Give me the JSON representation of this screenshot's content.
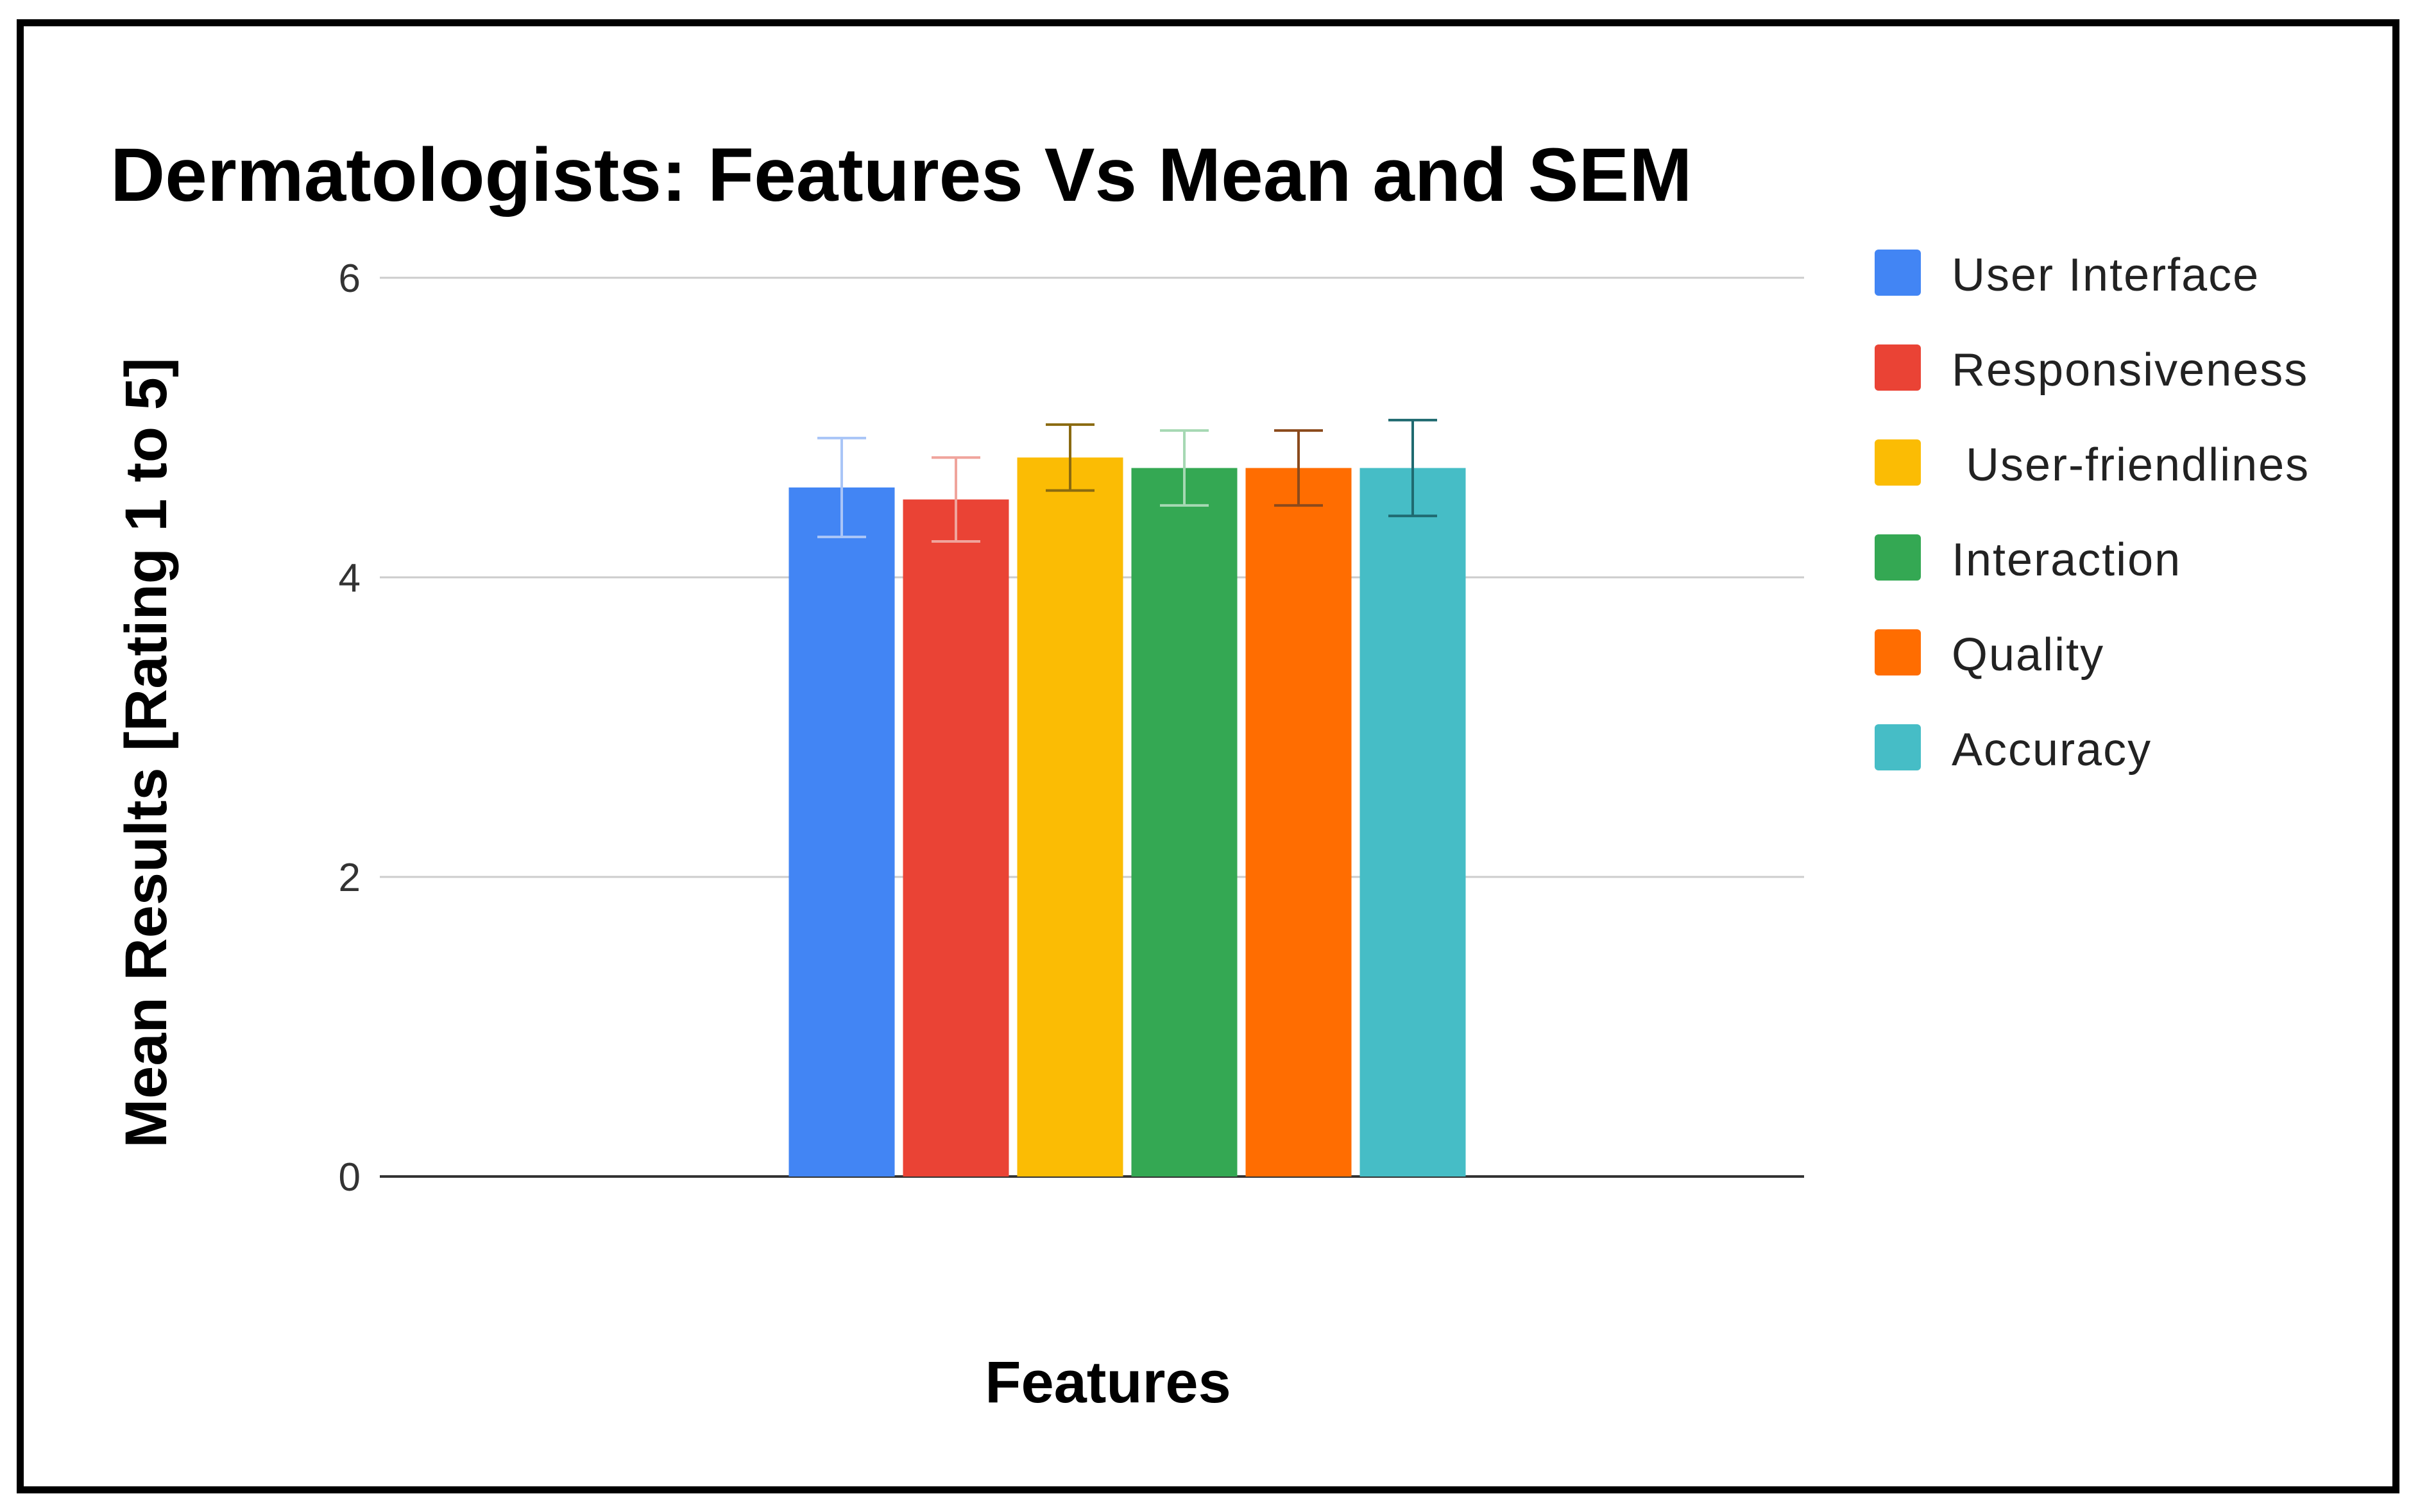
{
  "chart_data": {
    "type": "bar",
    "title": "Dermatologists: Features Vs Mean and SEM",
    "xlabel": "Features",
    "ylabel": "Mean Results [Rating 1 to 5]",
    "ylim": [
      0,
      6
    ],
    "yticks": [
      "0",
      "2",
      "4",
      "6"
    ],
    "grid": true,
    "legend_position": "right",
    "series": [
      {
        "name": "User Interface",
        "value": 4.6,
        "sem": 0.33,
        "color": "#4285F4",
        "error_color": "#A9C5F7"
      },
      {
        "name": "Responsiveness",
        "value": 4.52,
        "sem": 0.28,
        "color": "#EA4335",
        "error_color": "#F0A49C"
      },
      {
        "name": " User-friendlines",
        "value": 4.8,
        "sem": 0.22,
        "color": "#FBBC04",
        "error_color": "#8A6A10"
      },
      {
        "name": "Interaction",
        "value": 4.73,
        "sem": 0.25,
        "color": "#34A853",
        "error_color": "#A6D8B3"
      },
      {
        "name": "Quality",
        "value": 4.73,
        "sem": 0.25,
        "color": "#FF6D01",
        "error_color": "#8B4A1C"
      },
      {
        "name": "Accuracy",
        "value": 4.73,
        "sem": 0.32,
        "color": "#46BDC6",
        "error_color": "#1F6A70"
      }
    ]
  }
}
